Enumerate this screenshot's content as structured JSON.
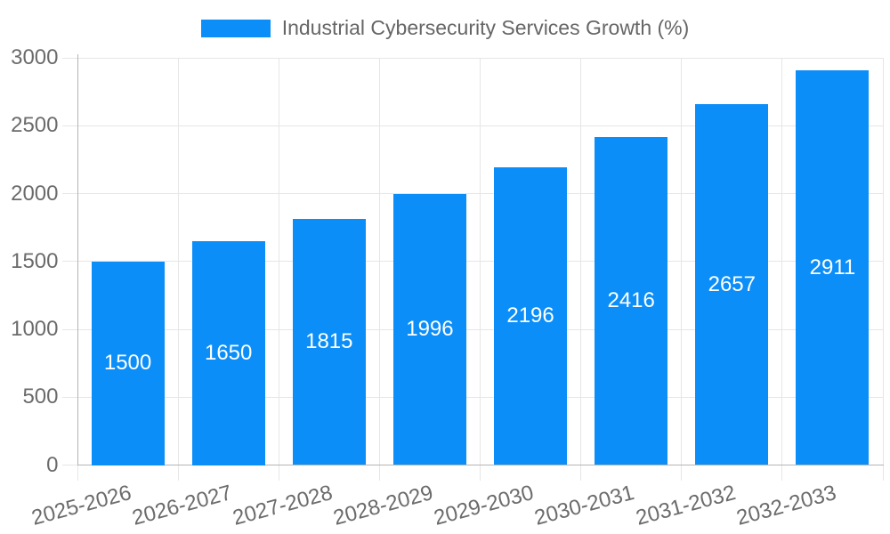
{
  "chart_data": {
    "type": "bar",
    "title": "",
    "legend": "Industrial Cybersecurity Services Growth (%)",
    "legend_position": "top",
    "categories": [
      "2025-2026",
      "2026-2027",
      "2027-2028",
      "2028-2029",
      "2029-2030",
      "2030-2031",
      "2031-2032",
      "2032-2033"
    ],
    "values": [
      1500,
      1650,
      1815,
      1996,
      2196,
      2416,
      2657,
      2911
    ],
    "value_labels": [
      "1500",
      "1650",
      "1815",
      "1996",
      "2196",
      "2416",
      "2657",
      "2911"
    ],
    "xlabel": "",
    "ylabel": "",
    "ylim": [
      0,
      3000
    ],
    "ytick_step": 500,
    "yticks": [
      "0",
      "500",
      "1000",
      "1500",
      "2000",
      "2500",
      "3000"
    ],
    "grid": true,
    "colors": {
      "bar": "#0c8ef9",
      "value_label": "#ffffff",
      "tick_text": "#6b6b6b",
      "legend_text": "#666666",
      "gridline": "#e6e6e6",
      "axis_line": "#b5b5b5",
      "background": "#ffffff"
    }
  }
}
